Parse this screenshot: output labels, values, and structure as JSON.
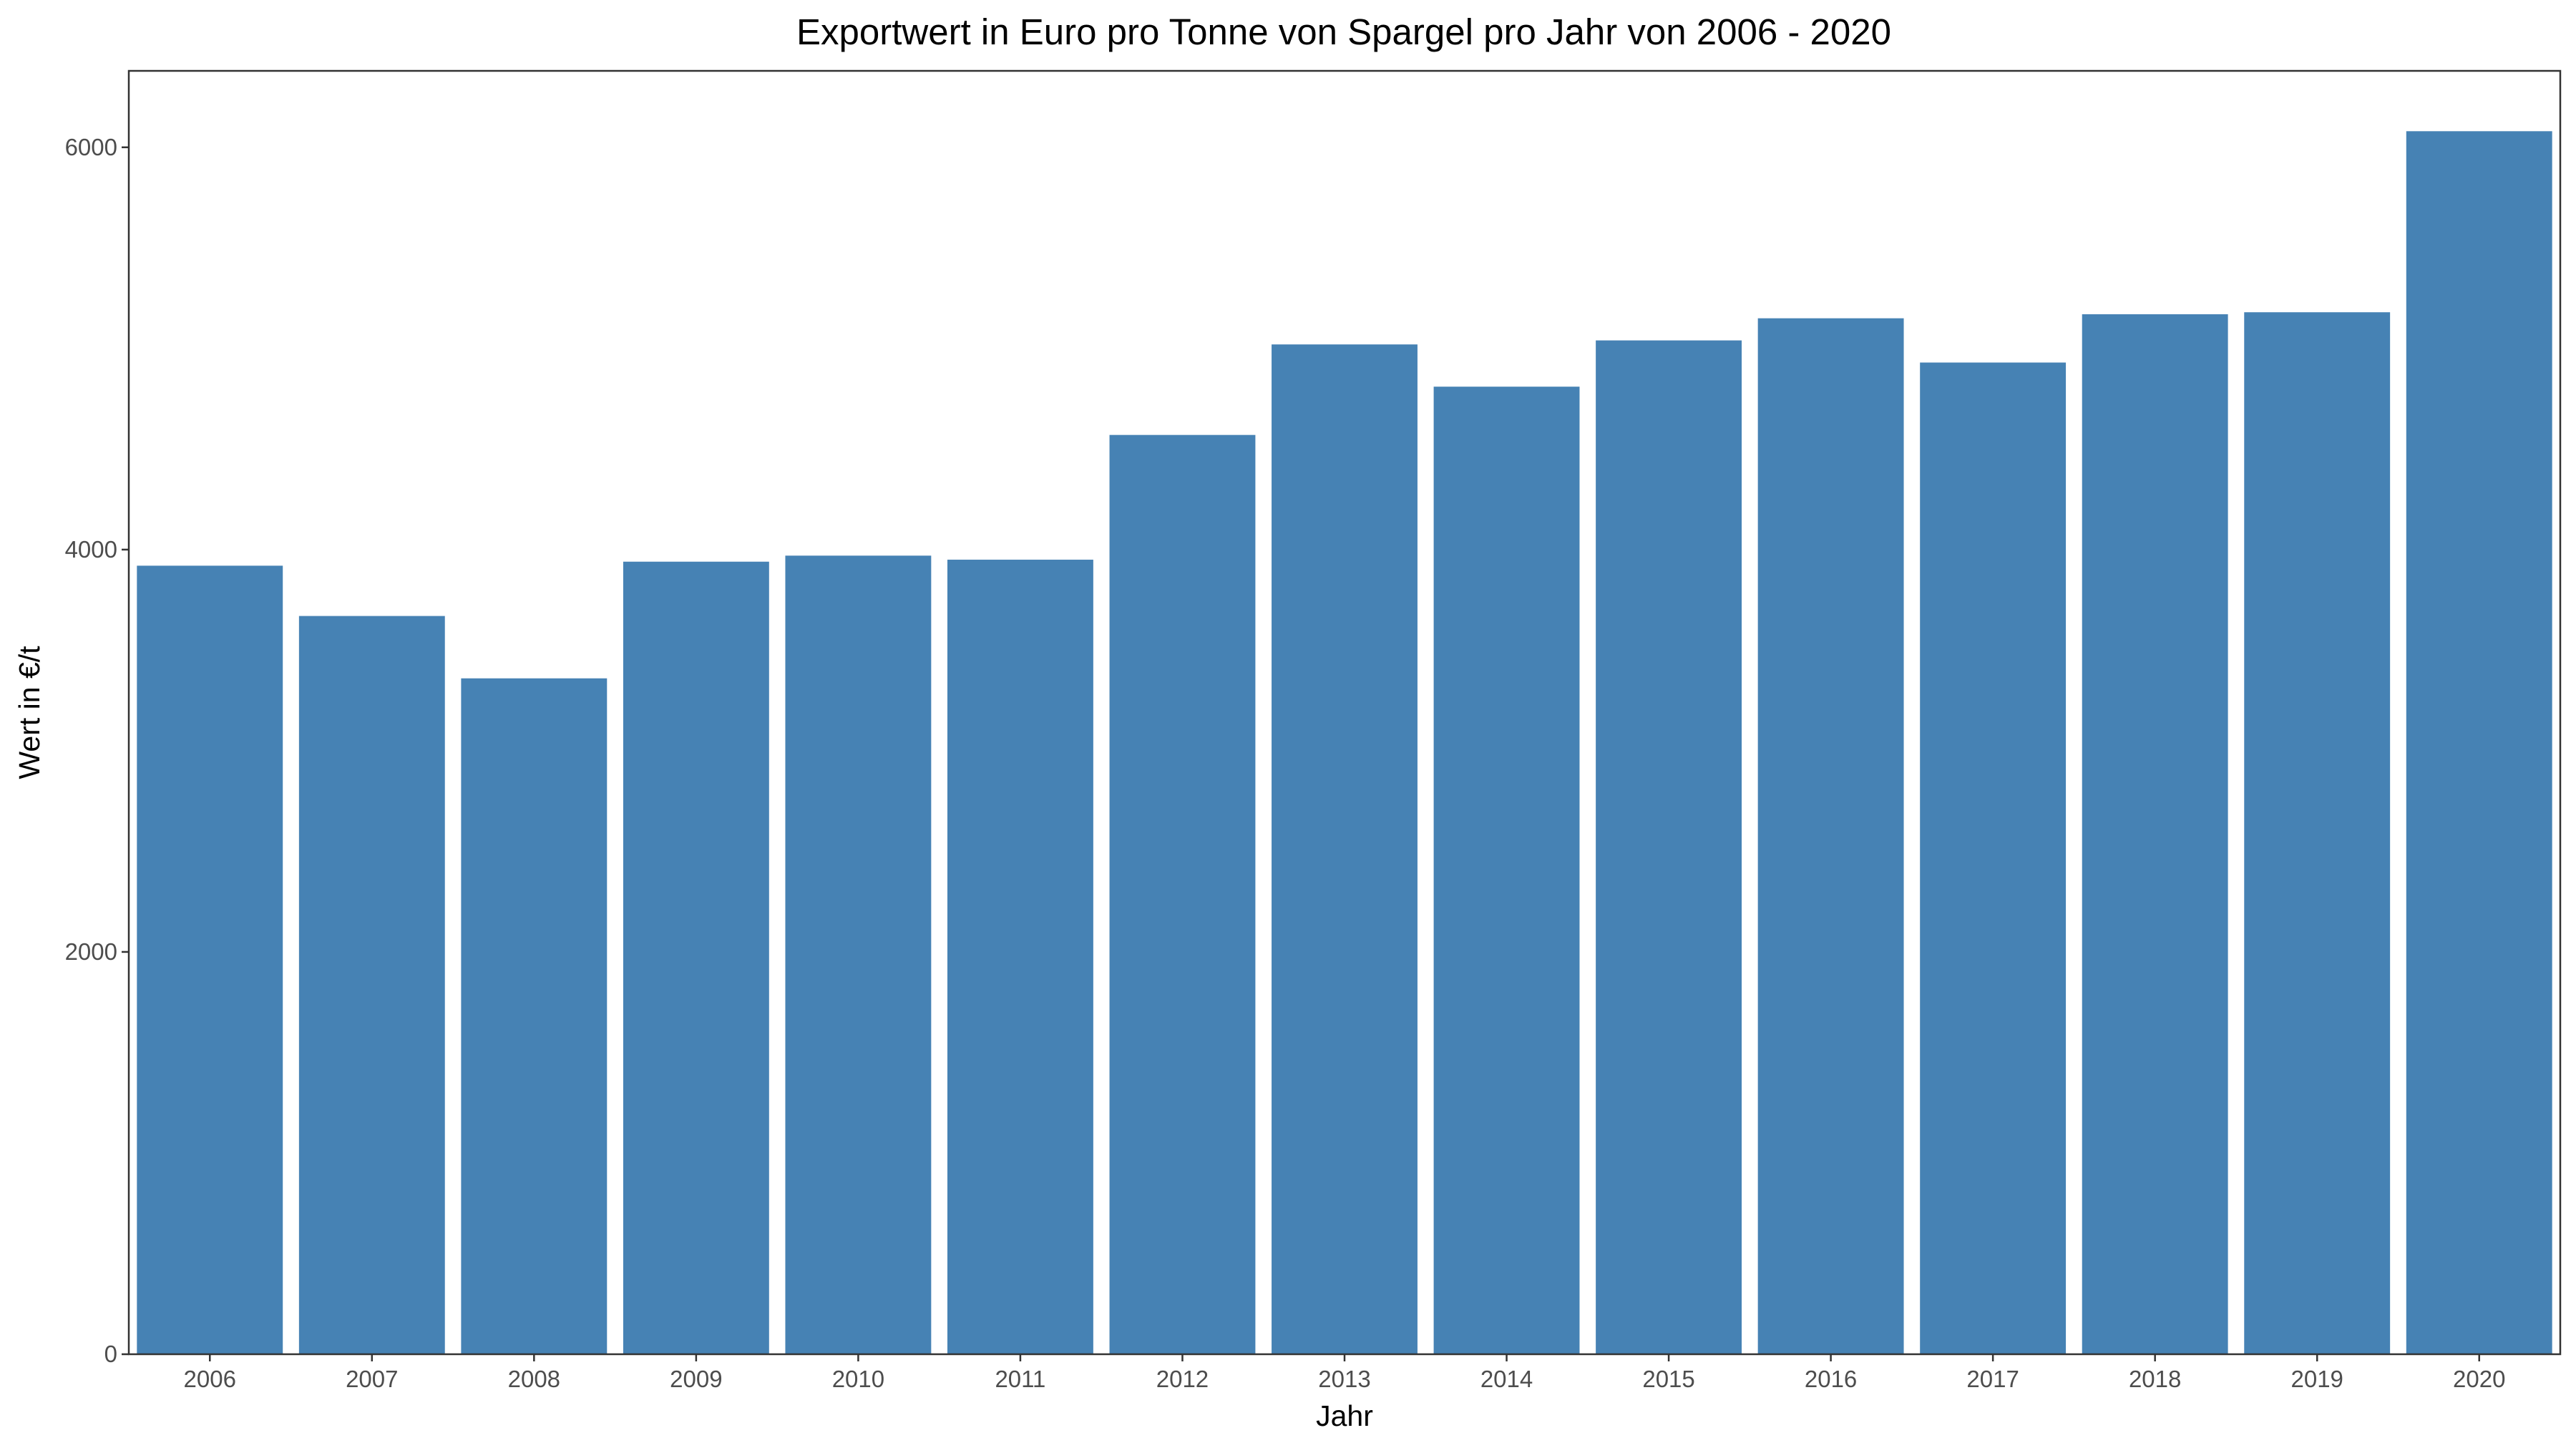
{
  "chart_data": {
    "type": "bar",
    "title": "Exportwert in Euro pro Tonne von Spargel pro Jahr von 2006 - 2020",
    "xlabel": "Jahr",
    "ylabel": "Wert in €/t",
    "categories": [
      "2006",
      "2007",
      "2008",
      "2009",
      "2010",
      "2011",
      "2012",
      "2013",
      "2014",
      "2015",
      "2016",
      "2017",
      "2018",
      "2019",
      "2020"
    ],
    "values": [
      3920,
      3670,
      3360,
      3940,
      3970,
      3950,
      4570,
      5020,
      4810,
      5040,
      5150,
      4930,
      5170,
      5180,
      6080
    ],
    "ylim": [
      0,
      6380
    ],
    "yticks": [
      0,
      2000,
      4000,
      6000
    ],
    "grid": false,
    "legend": "none",
    "bar_color": "#4682B4"
  }
}
